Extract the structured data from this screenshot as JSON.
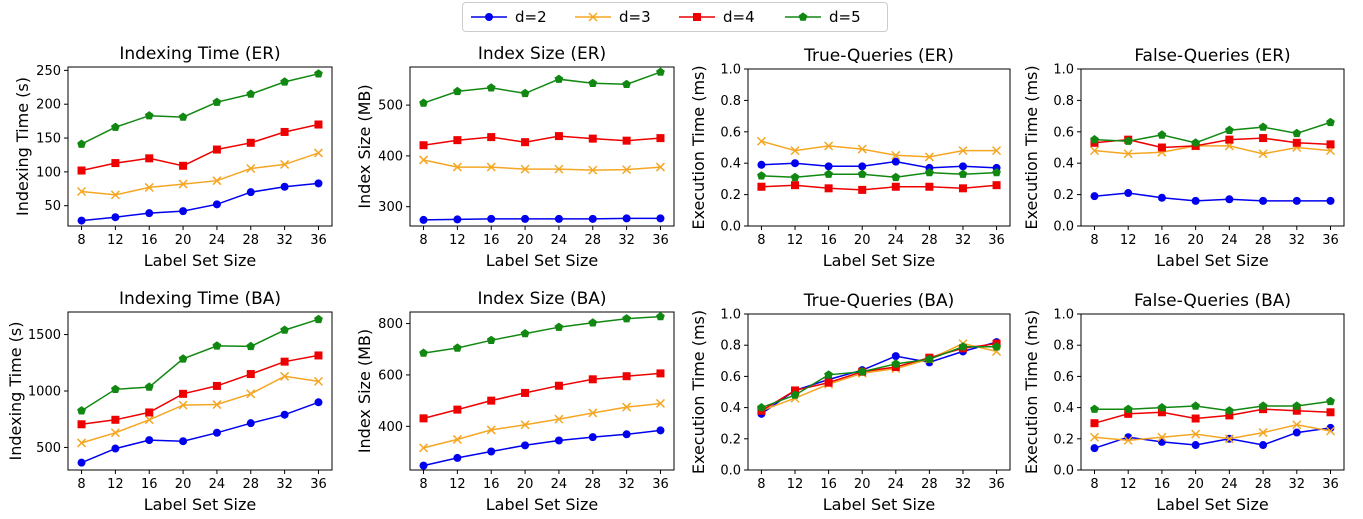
{
  "legend": {
    "items": [
      {
        "label": "d=2",
        "color": "#0000ee",
        "marker": "circle"
      },
      {
        "label": "d=3",
        "color": "#f5a623",
        "marker": "x"
      },
      {
        "label": "d=4",
        "color": "#ee0000",
        "marker": "square"
      },
      {
        "label": "d=5",
        "color": "#118811",
        "marker": "pentagon"
      }
    ]
  },
  "chart_data": [
    {
      "type": "line",
      "title": "Indexing Time (ER)",
      "xlabel": "Label Set Size",
      "ylabel": "Indexing Time (s)",
      "x": [
        8,
        12,
        16,
        20,
        24,
        28,
        32,
        36
      ],
      "ylim": [
        20,
        255
      ],
      "yticks": [
        50,
        100,
        150,
        200,
        250
      ],
      "series": [
        {
          "name": "d=2",
          "values": [
            28,
            33,
            39,
            42,
            52,
            70,
            78,
            83
          ]
        },
        {
          "name": "d=3",
          "values": [
            71,
            66,
            77,
            82,
            87,
            105,
            111,
            128
          ]
        },
        {
          "name": "d=4",
          "values": [
            102,
            113,
            120,
            109,
            133,
            143,
            159,
            170
          ]
        },
        {
          "name": "d=5",
          "values": [
            141,
            166,
            183,
            181,
            203,
            215,
            233,
            245
          ]
        }
      ]
    },
    {
      "type": "line",
      "title": "Index Size (ER)",
      "xlabel": "Label Set Size",
      "ylabel": "Index Size (MB)",
      "x": [
        8,
        12,
        16,
        20,
        24,
        28,
        32,
        36
      ],
      "ylim": [
        262,
        575
      ],
      "yticks": [
        300,
        400,
        500
      ],
      "series": [
        {
          "name": "d=2",
          "values": [
            274,
            275,
            276,
            276,
            276,
            276,
            277,
            277
          ]
        },
        {
          "name": "d=3",
          "values": [
            392,
            378,
            378,
            374,
            374,
            372,
            373,
            378
          ]
        },
        {
          "name": "d=4",
          "values": [
            421,
            431,
            437,
            427,
            439,
            434,
            430,
            435
          ]
        },
        {
          "name": "d=5",
          "values": [
            504,
            527,
            534,
            523,
            551,
            543,
            541,
            565
          ]
        }
      ]
    },
    {
      "type": "line",
      "title": "True-Queries (ER)",
      "xlabel": "Label Set Size",
      "ylabel": "Execution Time (ms)",
      "x": [
        8,
        12,
        16,
        20,
        24,
        28,
        32,
        36
      ],
      "ylim": [
        0,
        1.0
      ],
      "yticks": [
        0.0,
        0.2,
        0.4,
        0.6,
        0.8,
        1.0
      ],
      "series": [
        {
          "name": "d=2",
          "values": [
            0.39,
            0.4,
            0.38,
            0.38,
            0.41,
            0.37,
            0.38,
            0.37
          ]
        },
        {
          "name": "d=3",
          "values": [
            0.54,
            0.48,
            0.51,
            0.49,
            0.45,
            0.44,
            0.48,
            0.48
          ]
        },
        {
          "name": "d=4",
          "values": [
            0.25,
            0.26,
            0.24,
            0.23,
            0.25,
            0.25,
            0.24,
            0.26
          ]
        },
        {
          "name": "d=5",
          "values": [
            0.32,
            0.31,
            0.33,
            0.33,
            0.31,
            0.34,
            0.33,
            0.34
          ]
        }
      ]
    },
    {
      "type": "line",
      "title": "False-Queries (ER)",
      "xlabel": "Label Set Size",
      "ylabel": "Execution Time (ms)",
      "x": [
        8,
        12,
        16,
        20,
        24,
        28,
        32,
        36
      ],
      "ylim": [
        0,
        1.0
      ],
      "yticks": [
        0.0,
        0.2,
        0.4,
        0.6,
        0.8,
        1.0
      ],
      "series": [
        {
          "name": "d=2",
          "values": [
            0.19,
            0.21,
            0.18,
            0.16,
            0.17,
            0.16,
            0.16,
            0.16
          ]
        },
        {
          "name": "d=3",
          "values": [
            0.48,
            0.46,
            0.47,
            0.51,
            0.51,
            0.46,
            0.5,
            0.48
          ]
        },
        {
          "name": "d=4",
          "values": [
            0.53,
            0.55,
            0.5,
            0.51,
            0.55,
            0.56,
            0.53,
            0.52
          ]
        },
        {
          "name": "d=5",
          "values": [
            0.55,
            0.54,
            0.58,
            0.53,
            0.61,
            0.63,
            0.59,
            0.66
          ]
        }
      ]
    },
    {
      "type": "line",
      "title": "Indexing Time (BA)",
      "xlabel": "Label Set Size",
      "ylabel": "Indexing Time (s)",
      "x": [
        8,
        12,
        16,
        20,
        24,
        28,
        32,
        36
      ],
      "ylim": [
        300,
        1700
      ],
      "yticks": [
        500,
        1000,
        1500
      ],
      "series": [
        {
          "name": "d=2",
          "values": [
            365,
            490,
            565,
            555,
            630,
            715,
            790,
            900
          ]
        },
        {
          "name": "d=3",
          "values": [
            540,
            630,
            745,
            875,
            880,
            975,
            1130,
            1085
          ]
        },
        {
          "name": "d=4",
          "values": [
            705,
            745,
            810,
            975,
            1045,
            1150,
            1260,
            1315
          ]
        },
        {
          "name": "d=5",
          "values": [
            825,
            1015,
            1035,
            1285,
            1400,
            1395,
            1540,
            1635
          ]
        }
      ]
    },
    {
      "type": "line",
      "title": "Index Size (BA)",
      "xlabel": "Label Set Size",
      "ylabel": "Index Size (MB)",
      "x": [
        8,
        12,
        16,
        20,
        24,
        28,
        32,
        36
      ],
      "ylim": [
        230,
        845
      ],
      "yticks": [
        400,
        600,
        800
      ],
      "series": [
        {
          "name": "d=2",
          "values": [
            247,
            277,
            302,
            326,
            345,
            358,
            369,
            384
          ]
        },
        {
          "name": "d=3",
          "values": [
            316,
            349,
            386,
            406,
            428,
            452,
            475,
            489
          ]
        },
        {
          "name": "d=4",
          "values": [
            431,
            465,
            500,
            530,
            558,
            583,
            595,
            606
          ]
        },
        {
          "name": "d=5",
          "values": [
            685,
            705,
            735,
            761,
            786,
            803,
            819,
            827
          ]
        }
      ]
    },
    {
      "type": "line",
      "title": "True-Queries (BA)",
      "xlabel": "Label Set Size",
      "ylabel": "Execution Time (ms)",
      "x": [
        8,
        12,
        16,
        20,
        24,
        28,
        32,
        36
      ],
      "ylim": [
        0,
        1.0
      ],
      "yticks": [
        0.0,
        0.2,
        0.4,
        0.6,
        0.8,
        1.0
      ],
      "series": [
        {
          "name": "d=2",
          "values": [
            0.36,
            0.51,
            0.58,
            0.64,
            0.73,
            0.69,
            0.76,
            0.82
          ]
        },
        {
          "name": "d=3",
          "values": [
            0.38,
            0.46,
            0.55,
            0.62,
            0.65,
            0.71,
            0.81,
            0.76
          ]
        },
        {
          "name": "d=4",
          "values": [
            0.38,
            0.51,
            0.56,
            0.63,
            0.66,
            0.72,
            0.78,
            0.81
          ]
        },
        {
          "name": "d=5",
          "values": [
            0.4,
            0.48,
            0.61,
            0.63,
            0.68,
            0.71,
            0.79,
            0.79
          ]
        }
      ]
    },
    {
      "type": "line",
      "title": "False-Queries (BA)",
      "xlabel": "Label Set Size",
      "ylabel": "Execution Time (ms)",
      "x": [
        8,
        12,
        16,
        20,
        24,
        28,
        32,
        36
      ],
      "ylim": [
        0,
        1.0
      ],
      "yticks": [
        0.0,
        0.2,
        0.4,
        0.6,
        0.8,
        1.0
      ],
      "series": [
        {
          "name": "d=2",
          "values": [
            0.14,
            0.21,
            0.18,
            0.16,
            0.2,
            0.16,
            0.24,
            0.27
          ]
        },
        {
          "name": "d=3",
          "values": [
            0.21,
            0.19,
            0.21,
            0.23,
            0.2,
            0.24,
            0.29,
            0.25
          ]
        },
        {
          "name": "d=4",
          "values": [
            0.3,
            0.36,
            0.37,
            0.33,
            0.35,
            0.39,
            0.38,
            0.37
          ]
        },
        {
          "name": "d=5",
          "values": [
            0.39,
            0.39,
            0.4,
            0.41,
            0.38,
            0.41,
            0.41,
            0.44
          ]
        }
      ]
    }
  ]
}
